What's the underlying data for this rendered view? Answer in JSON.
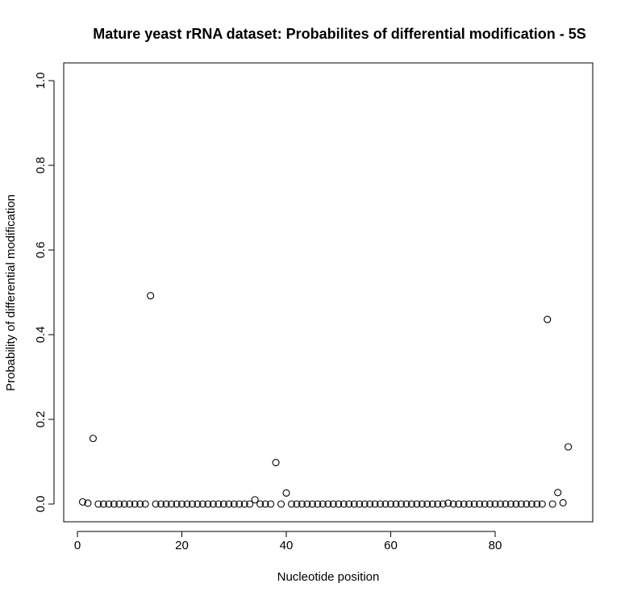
{
  "chart_data": {
    "type": "scatter",
    "title": "Mature yeast rRNA dataset: Probabilites of differential modification - 5S",
    "xlabel": "Nucleotide position",
    "ylabel": "Probability of differential modification",
    "xlim": [
      0,
      94
    ],
    "ylim": [
      0,
      1.0
    ],
    "x_ticks": [
      0,
      20,
      40,
      60,
      80
    ],
    "x_tick_labels": [
      "0",
      "20",
      "40",
      "60",
      "80"
    ],
    "y_ticks": [
      0.0,
      0.2,
      0.4,
      0.6,
      0.8,
      1.0
    ],
    "y_tick_labels": [
      "0.0",
      "0.2",
      "0.4",
      "0.6",
      "0.8",
      "1.0"
    ],
    "grid": false,
    "legend": "none",
    "x": [
      1,
      2,
      3,
      4,
      5,
      6,
      7,
      8,
      9,
      10,
      11,
      12,
      13,
      14,
      15,
      16,
      17,
      18,
      19,
      20,
      21,
      22,
      23,
      24,
      25,
      26,
      27,
      28,
      29,
      30,
      31,
      32,
      33,
      34,
      35,
      36,
      37,
      38,
      39,
      40,
      41,
      42,
      43,
      44,
      45,
      46,
      47,
      48,
      49,
      50,
      51,
      52,
      53,
      54,
      55,
      56,
      57,
      58,
      59,
      60,
      61,
      62,
      63,
      64,
      65,
      66,
      67,
      68,
      69,
      70,
      71,
      72,
      73,
      74,
      75,
      76,
      77,
      78,
      79,
      80,
      81,
      82,
      83,
      84,
      85,
      86,
      87,
      88,
      89,
      90,
      91,
      92,
      93,
      94
    ],
    "y": [
      0.005,
      0.002,
      0.155,
      0,
      0,
      0,
      0,
      0,
      0,
      0,
      0,
      0,
      0,
      0.492,
      0,
      0,
      0,
      0,
      0,
      0,
      0,
      0,
      0,
      0,
      0,
      0,
      0,
      0,
      0,
      0,
      0,
      0,
      0,
      0.01,
      0,
      0,
      0,
      0.098,
      0,
      0.026,
      0,
      0,
      0,
      0,
      0,
      0,
      0,
      0,
      0,
      0,
      0,
      0,
      0,
      0,
      0,
      0,
      0,
      0,
      0,
      0,
      0,
      0,
      0,
      0,
      0,
      0,
      0,
      0,
      0,
      0,
      0.002,
      0,
      0,
      0,
      0,
      0,
      0,
      0,
      0,
      0,
      0,
      0,
      0,
      0,
      0,
      0,
      0,
      0,
      0,
      0.436,
      0,
      0.027,
      0.003,
      0.135
    ]
  }
}
